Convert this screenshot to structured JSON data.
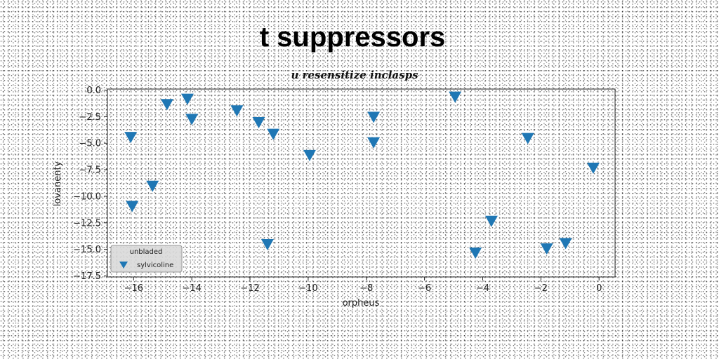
{
  "chart_data": {
    "type": "scatter",
    "title": "t suppressors",
    "subtitle": "u resensitize inclasps",
    "xlabel": "orpheus",
    "ylabel": "lovanenty",
    "xlim": [
      -16.9,
      0.55
    ],
    "ylim": [
      -17.6,
      0.1
    ],
    "xticks": [
      -16,
      -14,
      -12,
      -10,
      -8,
      -6,
      -4,
      -2,
      0
    ],
    "xtick_labels": [
      "−16",
      "−14",
      "−12",
      "−10",
      "−8",
      "−6",
      "−4",
      "−2",
      "0"
    ],
    "yticks": [
      0.0,
      -2.5,
      -5.0,
      -7.5,
      -10.0,
      -12.5,
      -15.0,
      -17.5
    ],
    "ytick_labels": [
      "0.0",
      "−2.5",
      "−5.0",
      "−7.5",
      "−10.0",
      "−12.5",
      "−15.0",
      "−17.5"
    ],
    "grid": false,
    "legend": {
      "title": "unbladed",
      "placement": "lower-left"
    },
    "series": [
      {
        "name": "sylvicoline",
        "marker": "triangle-down",
        "color": "#1f77b4",
        "x": [
          -16.1,
          -16.05,
          -15.35,
          -14.85,
          -14.15,
          -14.0,
          -12.45,
          -11.7,
          -11.4,
          -11.2,
          -9.95,
          -7.75,
          -7.75,
          -4.95,
          -4.25,
          -3.7,
          -2.45,
          -1.8,
          -1.15,
          -0.2
        ],
        "y": [
          -4.4,
          -10.9,
          -9.0,
          -1.3,
          -0.8,
          -2.7,
          -1.9,
          -3.0,
          -14.5,
          -4.1,
          -6.1,
          -2.5,
          -4.9,
          -0.6,
          -15.3,
          -12.3,
          -4.5,
          -14.9,
          -14.4,
          -7.3
        ]
      }
    ]
  }
}
